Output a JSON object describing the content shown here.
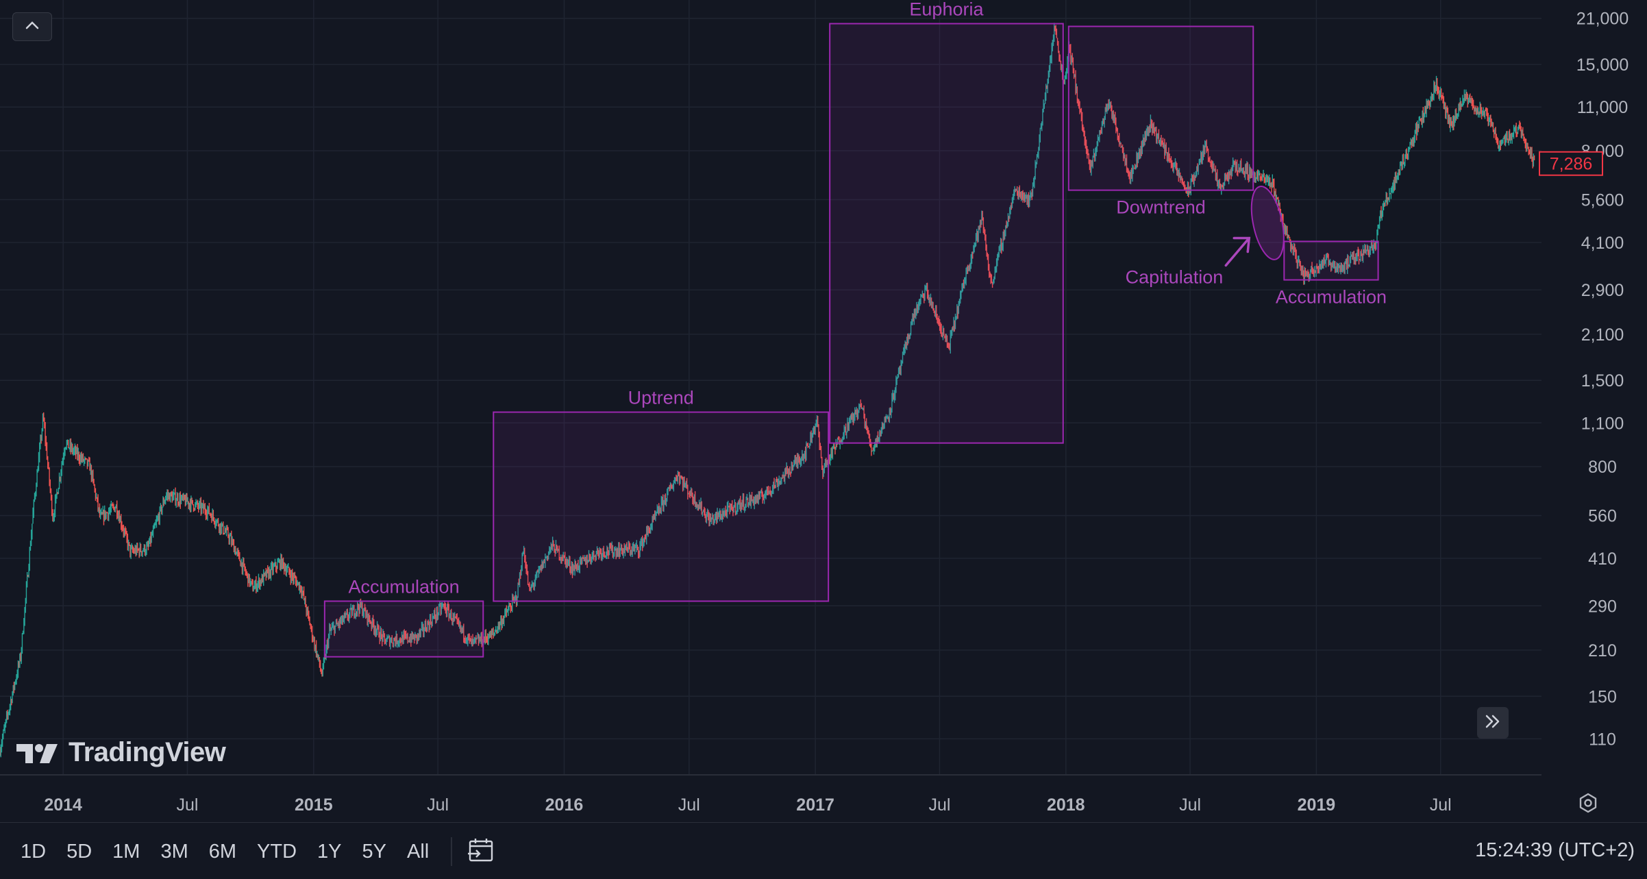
{
  "brand": {
    "name": "TradingView"
  },
  "icons": {
    "collapse": "chevron-up-icon",
    "scroll": "double-chevron-right-icon",
    "settings": "gear-icon",
    "calendar": "calendar-goto-icon"
  },
  "colors": {
    "background": "#131722",
    "grid": "#1f2431",
    "up": "#26a69a",
    "down": "#ef5350",
    "annotation": "#9c27b0",
    "annotation_text": "#ab47bc",
    "price_tag": "#f23645"
  },
  "bottom_bar": {
    "ranges": [
      "1D",
      "5D",
      "1M",
      "3M",
      "6M",
      "YTD",
      "1Y",
      "5Y",
      "All"
    ],
    "clock": "15:24:39 (UTC+2)"
  },
  "chart_data": {
    "type": "candlestick",
    "scale": "log",
    "ylim": [
      85,
      24000
    ],
    "grid": true,
    "x_ticks": [
      {
        "label": "2014",
        "date": "2014-01-01",
        "major": true
      },
      {
        "label": "Jul",
        "date": "2014-07-01",
        "major": false
      },
      {
        "label": "2015",
        "date": "2015-01-01",
        "major": true
      },
      {
        "label": "Jul",
        "date": "2015-07-01",
        "major": false
      },
      {
        "label": "2016",
        "date": "2016-01-01",
        "major": true
      },
      {
        "label": "Jul",
        "date": "2016-07-01",
        "major": false
      },
      {
        "label": "2017",
        "date": "2017-01-01",
        "major": true
      },
      {
        "label": "Jul",
        "date": "2017-07-01",
        "major": false
      },
      {
        "label": "2018",
        "date": "2018-01-01",
        "major": true
      },
      {
        "label": "Jul",
        "date": "2018-07-01",
        "major": false
      },
      {
        "label": "2019",
        "date": "2019-01-01",
        "major": true
      },
      {
        "label": "Jul",
        "date": "2019-07-01",
        "major": false
      }
    ],
    "y_ticks": [
      {
        "label": "21,000",
        "value": 21000
      },
      {
        "label": "15,000",
        "value": 15000
      },
      {
        "label": "11,000",
        "value": 11000
      },
      {
        "label": "8,000",
        "value": 8000
      },
      {
        "label": "5,600",
        "value": 5600
      },
      {
        "label": "4,100",
        "value": 4100
      },
      {
        "label": "2,900",
        "value": 2900
      },
      {
        "label": "2,100",
        "value": 2100
      },
      {
        "label": "1,500",
        "value": 1500
      },
      {
        "label": "1,100",
        "value": 1100
      },
      {
        "label": "800",
        "value": 800
      },
      {
        "label": "560",
        "value": 560
      },
      {
        "label": "410",
        "value": 410
      },
      {
        "label": "290",
        "value": 290
      },
      {
        "label": "210",
        "value": 210
      },
      {
        "label": "150",
        "value": 150
      },
      {
        "label": "110",
        "value": 110
      }
    ],
    "last_price": {
      "label": "7,286",
      "value": 7286
    },
    "price_path": [
      [
        "2013-10-01",
        100
      ],
      [
        "2013-11-01",
        200
      ],
      [
        "2013-11-20",
        600
      ],
      [
        "2013-12-04",
        1150
      ],
      [
        "2013-12-18",
        550
      ],
      [
        "2014-01-05",
        950
      ],
      [
        "2014-02-10",
        800
      ],
      [
        "2014-02-25",
        550
      ],
      [
        "2014-03-20",
        600
      ],
      [
        "2014-04-10",
        430
      ],
      [
        "2014-05-05",
        440
      ],
      [
        "2014-06-01",
        650
      ],
      [
        "2014-07-01",
        620
      ],
      [
        "2014-08-01",
        580
      ],
      [
        "2014-09-01",
        480
      ],
      [
        "2014-10-05",
        330
      ],
      [
        "2014-11-15",
        400
      ],
      [
        "2014-12-15",
        330
      ],
      [
        "2015-01-14",
        175
      ],
      [
        "2015-01-25",
        240
      ],
      [
        "2015-03-10",
        290
      ],
      [
        "2015-04-15",
        225
      ],
      [
        "2015-06-01",
        230
      ],
      [
        "2015-07-10",
        290
      ],
      [
        "2015-08-20",
        220
      ],
      [
        "2015-09-20",
        235
      ],
      [
        "2015-10-25",
        310
      ],
      [
        "2015-11-04",
        440
      ],
      [
        "2015-11-12",
        320
      ],
      [
        "2015-12-15",
        450
      ],
      [
        "2016-01-15",
        380
      ],
      [
        "2016-02-20",
        430
      ],
      [
        "2016-04-20",
        440
      ],
      [
        "2016-06-16",
        760
      ],
      [
        "2016-07-01",
        670
      ],
      [
        "2016-08-02",
        540
      ],
      [
        "2016-09-15",
        610
      ],
      [
        "2016-10-15",
        640
      ],
      [
        "2016-11-15",
        740
      ],
      [
        "2016-12-20",
        900
      ],
      [
        "2017-01-04",
        1130
      ],
      [
        "2017-01-12",
        780
      ],
      [
        "2017-02-20",
        1100
      ],
      [
        "2017-03-10",
        1250
      ],
      [
        "2017-03-25",
        900
      ],
      [
        "2017-04-20",
        1200
      ],
      [
        "2017-05-25",
        2400
      ],
      [
        "2017-06-12",
        2900
      ],
      [
        "2017-07-15",
        1900
      ],
      [
        "2017-08-10",
        3300
      ],
      [
        "2017-09-02",
        4900
      ],
      [
        "2017-09-15",
        3000
      ],
      [
        "2017-10-20",
        6000
      ],
      [
        "2017-11-12",
        5600
      ],
      [
        "2017-12-17",
        19800
      ],
      [
        "2017-12-30",
        13000
      ],
      [
        "2018-01-07",
        17000
      ],
      [
        "2018-02-06",
        6900
      ],
      [
        "2018-03-05",
        11500
      ],
      [
        "2018-04-06",
        6600
      ],
      [
        "2018-05-05",
        9800
      ],
      [
        "2018-06-29",
        5900
      ],
      [
        "2018-07-25",
        8300
      ],
      [
        "2018-08-14",
        6000
      ],
      [
        "2018-09-05",
        7200
      ],
      [
        "2018-10-30",
        6300
      ],
      [
        "2018-11-19",
        4400
      ],
      [
        "2018-12-15",
        3200
      ],
      [
        "2019-01-15",
        3600
      ],
      [
        "2019-02-07",
        3400
      ],
      [
        "2019-03-30",
        4100
      ],
      [
        "2019-04-05",
        5000
      ],
      [
        "2019-05-15",
        8000
      ],
      [
        "2019-06-26",
        13000
      ],
      [
        "2019-07-17",
        9500
      ],
      [
        "2019-08-06",
        11800
      ],
      [
        "2019-09-10",
        10100
      ],
      [
        "2019-09-25",
        8400
      ],
      [
        "2019-10-26",
        9500
      ],
      [
        "2019-11-15",
        7286
      ]
    ],
    "annotations": [
      {
        "label": "Accumulation",
        "shape": "rect",
        "x0": "2015-01-17",
        "x1": "2015-09-05",
        "y0": 200,
        "y1": 300,
        "label_pos": "top"
      },
      {
        "label": "Uptrend",
        "shape": "rect",
        "x0": "2015-09-20",
        "x1": "2017-01-20",
        "y0": 300,
        "y1": 1190,
        "label_pos": "top"
      },
      {
        "label": "Euphoria",
        "shape": "rect",
        "x0": "2017-01-22",
        "x1": "2017-12-28",
        "y0": 950,
        "y1": 20200,
        "label_pos": "top"
      },
      {
        "label": "Downtrend",
        "shape": "rect",
        "x0": "2018-01-05",
        "x1": "2018-10-01",
        "y0": 6000,
        "y1": 19800,
        "label_pos": "bottom"
      },
      {
        "label": "Capitulation",
        "shape": "ellipse",
        "x0": "2018-10-01",
        "x1": "2018-11-12",
        "y0": 3600,
        "y1": 6200,
        "label_pos": "left-arrow"
      },
      {
        "label": "Accumulation",
        "shape": "rect",
        "x0": "2018-11-15",
        "x1": "2019-04-01",
        "y0": 3120,
        "y1": 4130,
        "label_pos": "bottom"
      }
    ]
  }
}
